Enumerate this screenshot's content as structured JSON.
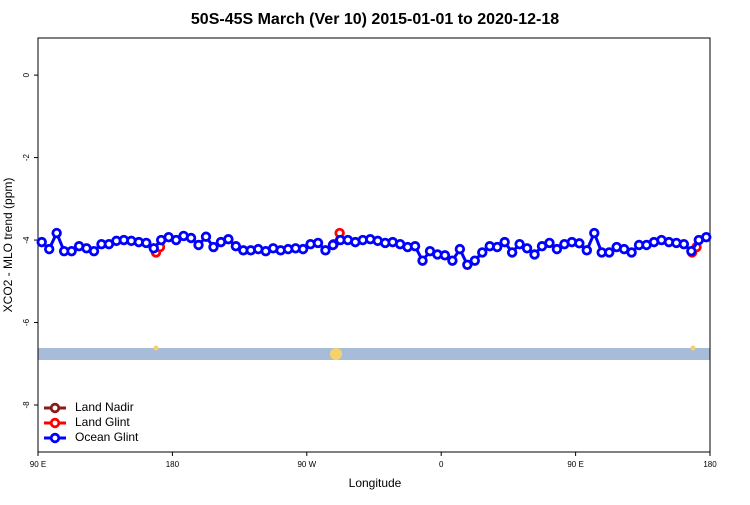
{
  "chart_data": {
    "type": "line",
    "title": "50S-45S March (Ver 10)   2015-01-01 to 2020-12-18",
    "xlabel": "Longitude",
    "ylabel": "XCO2 - MLO trend (ppm)",
    "xlim": [
      90,
      540
    ],
    "ylim": [
      -9.14,
      0.9
    ],
    "xticks": [
      {
        "value": 90,
        "label": "90 E"
      },
      180,
      {
        "value": 270,
        "label": "90 W"
      },
      {
        "value": 360,
        "label": "0"
      },
      {
        "value": 450,
        "label": "90 E"
      },
      {
        "value": 540,
        "label": "180"
      }
    ],
    "yticks": [
      0,
      -2,
      -4,
      -6,
      -8
    ],
    "legend": "bottom-left",
    "series": [
      {
        "name": "Land Nadir",
        "color": "#8b1a1a",
        "x": [],
        "values": []
      },
      {
        "name": "Land Glint",
        "color": "#ff0000",
        "x": [
          169,
          171.7,
          null,
          288,
          292,
          null,
          528,
          531
        ],
        "values": [
          -4.3,
          -4.17,
          null,
          -4.1,
          -3.83,
          null,
          -4.3,
          -4.17
        ]
      },
      {
        "name": "Ocean Glint",
        "color": "#0000ff",
        "x": [
          92.5,
          97.5,
          102.5,
          107.5,
          112.5,
          117.5,
          122.5,
          127.5,
          132.5,
          137.5,
          142.5,
          147.5,
          152.5,
          157.5,
          162.5,
          167.5,
          172.5,
          177.5,
          182.5,
          187.5,
          192.5,
          197.5,
          202.5,
          207.5,
          212.5,
          217.5,
          222.5,
          227.5,
          232.5,
          237.5,
          242.5,
          247.5,
          252.5,
          257.5,
          262.5,
          267.5,
          272.5,
          277.5,
          282.5,
          287.5,
          292.5,
          297.5,
          302.5,
          307.5,
          312.5,
          317.5,
          322.5,
          327.5,
          332.5,
          337.5,
          342.5,
          347.5,
          352.5,
          357.5,
          362.5,
          367.5,
          372.5,
          377.5,
          382.5,
          387.5,
          392.5,
          397.5,
          402.5,
          407.5,
          412.5,
          417.5,
          422.5,
          427.5,
          432.5,
          437.5,
          442.5,
          447.5,
          452.5,
          457.5,
          462.5,
          467.5,
          472.5,
          477.5,
          482.5,
          487.5,
          492.5,
          497.5,
          502.5,
          507.5,
          512.5,
          517.5,
          522.5,
          527.5,
          532.5,
          537.5
        ],
        "values": [
          -4.05,
          -4.22,
          -3.83,
          -4.27,
          -4.27,
          -4.15,
          -4.2,
          -4.27,
          -4.1,
          -4.1,
          -4.02,
          -4.0,
          -4.02,
          -4.05,
          -4.07,
          -4.2,
          -4.0,
          -3.93,
          -4.0,
          -3.9,
          -3.95,
          -4.12,
          -3.92,
          -4.17,
          -4.05,
          -3.98,
          -4.15,
          -4.25,
          -4.25,
          -4.22,
          -4.27,
          -4.2,
          -4.25,
          -4.22,
          -4.2,
          -4.22,
          -4.1,
          -4.07,
          -4.25,
          -4.12,
          -4.0,
          -4.0,
          -4.05,
          -4.0,
          -3.98,
          -4.02,
          -4.07,
          -4.05,
          -4.1,
          -4.17,
          -4.15,
          -4.5,
          -4.27,
          -4.35,
          -4.37,
          -4.5,
          -4.22,
          -4.6,
          -4.5,
          -4.3,
          -4.15,
          -4.17,
          -4.05,
          -4.3,
          -4.1,
          -4.2,
          -4.35,
          -4.15,
          -4.07,
          -4.22,
          -4.1,
          -4.05,
          -4.08,
          -4.25,
          -3.83,
          -4.3,
          -4.3,
          -4.17,
          -4.22,
          -4.3,
          -4.12,
          -4.12,
          -4.05,
          -4.0,
          -4.05,
          -4.07,
          -4.1,
          -4.27,
          -4.0,
          -3.93
        ]
      }
    ]
  }
}
